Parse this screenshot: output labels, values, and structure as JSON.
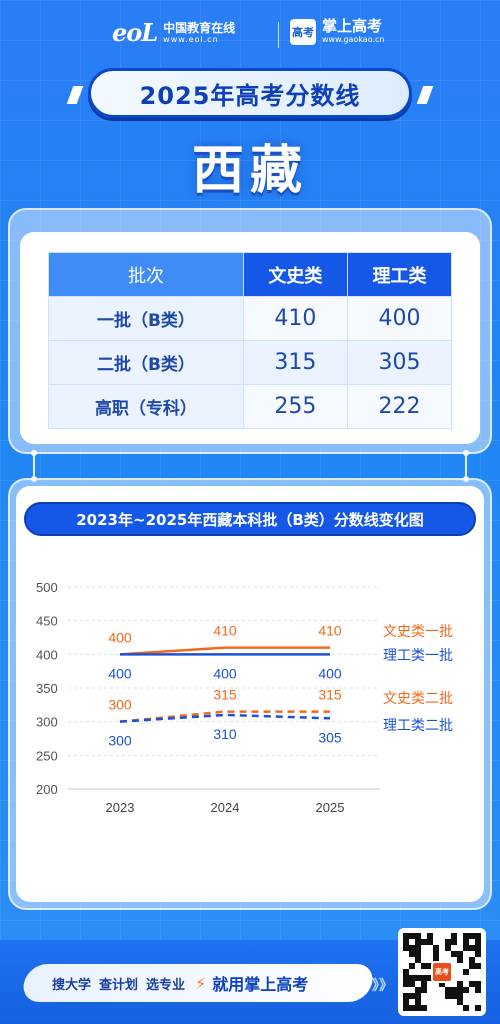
{
  "header": {
    "eol_mark": "eoL",
    "eol_name": "中国教育在线",
    "eol_url": "www.eol.cn",
    "gk_badge": "高考",
    "gk_name": "掌上高考",
    "gk_url": "www.gaokao.cn"
  },
  "title": "2025年高考分数线",
  "province": "西藏",
  "table": {
    "headers": [
      "批次",
      "文史类",
      "理工类"
    ],
    "rows": [
      {
        "label": "一批（B类）",
        "wenshi": "410",
        "ligong": "400"
      },
      {
        "label": "二批（B类）",
        "wenshi": "315",
        "ligong": "305"
      },
      {
        "label": "高职（专科）",
        "wenshi": "255",
        "ligong": "222"
      }
    ]
  },
  "chart_title": "2023年~2025年西藏本科批（B类）分数线变化图",
  "chart_data": {
    "type": "line",
    "title": "2023年~2025年西藏本科批（B类）分数线变化图",
    "categories": [
      "2023",
      "2024",
      "2025"
    ],
    "ylim": [
      200,
      500
    ],
    "yticks": [
      200,
      250,
      300,
      350,
      400,
      450,
      500
    ],
    "grid": true,
    "legend_position": "right",
    "series": [
      {
        "name": "文史类一批",
        "values": [
          400,
          410,
          410
        ],
        "color": "#f26a1b",
        "dashed": false
      },
      {
        "name": "理工类一批",
        "values": [
          400,
          400,
          400
        ],
        "color": "#1d52d6",
        "dashed": false
      },
      {
        "name": "文史类二批",
        "values": [
          300,
          315,
          315
        ],
        "color": "#f26a1b",
        "dashed": true
      },
      {
        "name": "理工类二批",
        "values": [
          300,
          310,
          305
        ],
        "color": "#1d52d6",
        "dashed": true
      }
    ]
  },
  "footer": {
    "sub1": "搜大学",
    "sub2": "查计划",
    "sub3": "选专业",
    "main": "就用掌上高考",
    "arrows": "》》",
    "qr_badge": "高考"
  },
  "colors": {
    "accent_blue": "#1558e8",
    "orange": "#f26a1b"
  }
}
